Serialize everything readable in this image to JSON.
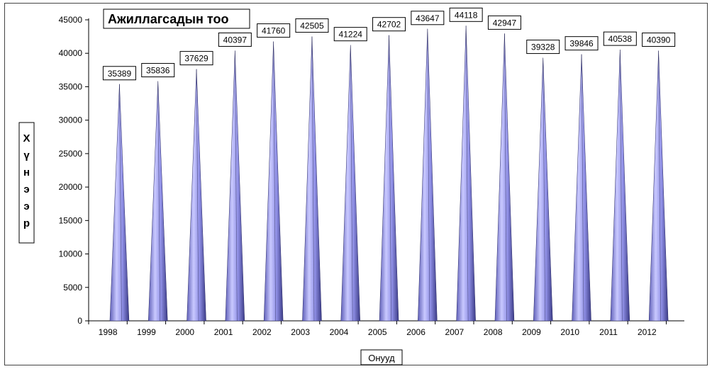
{
  "chart_data": {
    "type": "bar",
    "title": "Ажиллагсадын тоо",
    "xlabel": "Онууд",
    "ylabel": "Хүнээр",
    "ylabel_chars": [
      "Х",
      "ү",
      "н",
      "э",
      "э",
      "р"
    ],
    "categories": [
      "1998",
      "1999",
      "2000",
      "2001",
      "2002",
      "2003",
      "2004",
      "2005",
      "2006",
      "2007",
      "2008",
      "2009",
      "2010",
      "2011",
      "2012"
    ],
    "values": [
      35389,
      35836,
      37629,
      40397,
      41760,
      42505,
      41224,
      42702,
      43647,
      44118,
      42947,
      39328,
      39846,
      40538,
      40390
    ],
    "data_labels": [
      "35389",
      "35836",
      "37629",
      "40397",
      "41760",
      "42505",
      "41224",
      "42702",
      "43647",
      "44118",
      "42947",
      "39328",
      "39846",
      "40538",
      "40390"
    ],
    "ylim": [
      0,
      45000
    ],
    "yticks": [
      0,
      5000,
      10000,
      15000,
      20000,
      25000,
      30000,
      35000,
      40000,
      45000
    ],
    "ytick_labels": [
      "0",
      "5000",
      "10000",
      "15000",
      "20000",
      "25000",
      "30000",
      "35000",
      "40000",
      "45000"
    ],
    "bar_shape": "cone",
    "bar_color": "#9a9af0",
    "grid": false,
    "legend": "none"
  }
}
